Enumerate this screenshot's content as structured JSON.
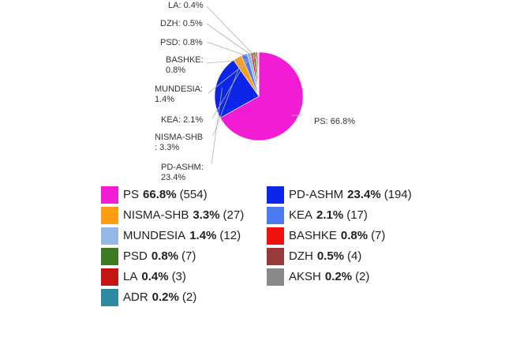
{
  "chart_data": {
    "type": "pie",
    "slices": [
      {
        "label": "PS",
        "pct": 66.8,
        "count": 554,
        "color": "#f21cd4",
        "callout": "PS: 66.8%"
      },
      {
        "label": "PD-ASHM",
        "pct": 23.4,
        "count": 194,
        "color": "#0b26e8",
        "callout": "PD-ASHM: 23.4%"
      },
      {
        "label": "NISMA-SHB",
        "pct": 3.3,
        "count": 27,
        "color": "#ff9e12",
        "callout": "NISMA-SHB: 3.3%"
      },
      {
        "label": "KEA",
        "pct": 2.1,
        "count": 17,
        "color": "#4a7bf0",
        "callout": "KEA: 2.1%"
      },
      {
        "label": "MUNDESIA",
        "pct": 1.4,
        "count": 12,
        "color": "#94b7e6",
        "callout": "MUNDESIA: 1.4%"
      },
      {
        "label": "BASHKE",
        "pct": 0.8,
        "count": 7,
        "color": "#f01010",
        "callout": "BASHKE: 0.8%"
      },
      {
        "label": "PSD",
        "pct": 0.8,
        "count": 7,
        "color": "#3e7a24",
        "callout": "PSD: 0.8%"
      },
      {
        "label": "DZH",
        "pct": 0.5,
        "count": 4,
        "color": "#963a3a",
        "callout": "DZH: 0.5%"
      },
      {
        "label": "LA",
        "pct": 0.4,
        "count": 3,
        "color": "#c41414",
        "callout": "LA: 0.4%"
      },
      {
        "label": "AKSH",
        "pct": 0.2,
        "count": 2,
        "color": "#8a8a8a",
        "callout": ""
      },
      {
        "label": "ADR",
        "pct": 0.2,
        "count": 2,
        "color": "#2e8aa0",
        "callout": ""
      }
    ]
  },
  "legend": {
    "items": [
      {
        "name": "PS",
        "pct": "66.8%",
        "count": "(554)",
        "color": "#f21cd4"
      },
      {
        "name": "PD-ASHM",
        "pct": "23.4%",
        "count": "(194)",
        "color": "#0b26e8"
      },
      {
        "name": "NISMA-SHB",
        "pct": "3.3%",
        "count": "(27)",
        "color": "#ff9e12"
      },
      {
        "name": "KEA",
        "pct": "2.1%",
        "count": "(17)",
        "color": "#4a7bf0"
      },
      {
        "name": "MUNDESIA",
        "pct": "1.4%",
        "count": "(12)",
        "color": "#94b7e6"
      },
      {
        "name": "BASHKE",
        "pct": "0.8%",
        "count": "(7)",
        "color": "#f01010"
      },
      {
        "name": "PSD",
        "pct": "0.8%",
        "count": "(7)",
        "color": "#3e7a24"
      },
      {
        "name": "DZH",
        "pct": "0.5%",
        "count": "(4)",
        "color": "#963a3a"
      },
      {
        "name": "LA",
        "pct": "0.4%",
        "count": "(3)",
        "color": "#c41414"
      },
      {
        "name": "AKSH",
        "pct": "0.2%",
        "count": "(2)",
        "color": "#8a8a8a"
      },
      {
        "name": "ADR",
        "pct": "0.2%",
        "count": "(2)",
        "color": "#2e8aa0"
      }
    ]
  }
}
